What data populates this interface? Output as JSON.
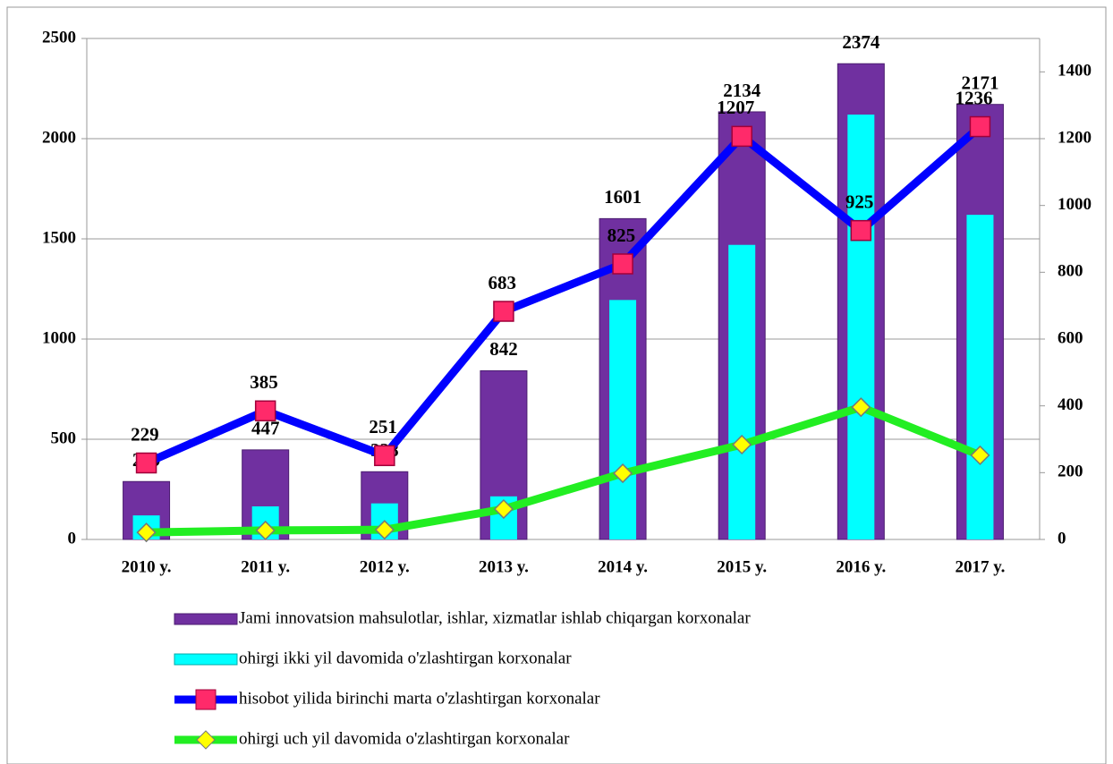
{
  "chart_data": {
    "type": "bar",
    "categories": [
      "2010 y.",
      "2011 y.",
      "2012 y.",
      "2013 y.",
      "2014 y.",
      "2015 y.",
      "2016 y.",
      "2017 y."
    ],
    "series": [
      {
        "name": "Jami innovatsion mahsulotlar, ishlar, xizmatlar ishlab chiqargan korxonalar",
        "type": "bar",
        "color": "#7030a0",
        "values": [
          289,
          447,
          338,
          842,
          1601,
          2134,
          2374,
          2171
        ],
        "show_labels": true
      },
      {
        "name": "ohirgi ikki yil davomida o'zlashtirgan korxonalar",
        "type": "bar",
        "color": "#00ffff",
        "values": [
          120,
          165,
          180,
          215,
          1195,
          1470,
          2120,
          1620
        ],
        "show_labels": false
      },
      {
        "name": "hisobot yilida birinchi marta o'zlashtirgan korxonalar",
        "type": "line",
        "axis": "y2",
        "color": "#0000ff",
        "marker": "square",
        "marker_color": "#ff2a6a",
        "values": [
          229,
          385,
          251,
          683,
          825,
          1207,
          925,
          1236
        ],
        "show_labels": true
      },
      {
        "name": "ohirgi uch yil davomida o'zlashtirgan korxonalar",
        "type": "line",
        "axis": "y2",
        "color": "#22ee22",
        "marker": "diamond",
        "marker_color": "#ffff00",
        "values": [
          21,
          27,
          29,
          91,
          198,
          284,
          396,
          252
        ],
        "show_labels": false
      }
    ],
    "ylim": [
      0,
      2500
    ],
    "yticks": [
      0,
      500,
      1000,
      1500,
      2000,
      2500
    ],
    "y2lim": [
      0,
      1500
    ],
    "y2ticks": [
      0,
      200,
      400,
      600,
      800,
      1000,
      1200,
      1400
    ],
    "grid": true,
    "legend": "bottom"
  }
}
